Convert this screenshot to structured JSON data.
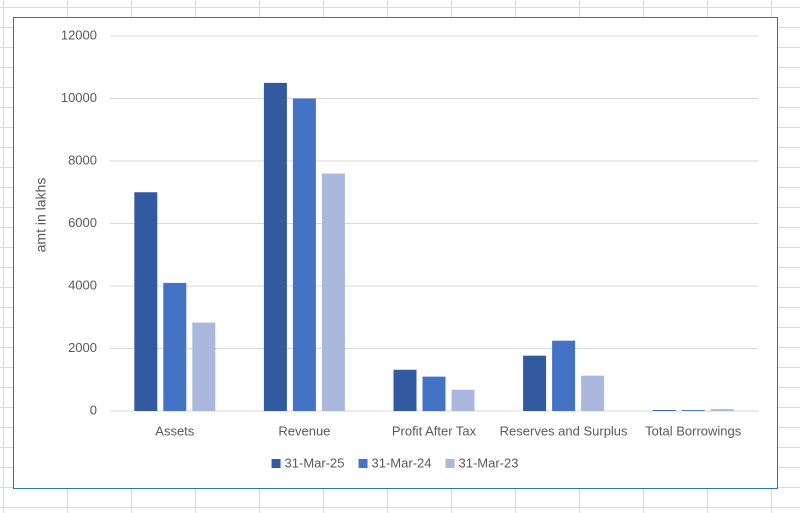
{
  "chart_data": {
    "type": "bar",
    "y_label": "amt in  lakhs",
    "categories": [
      "Assets",
      "Revenue",
      "Profit After Tax",
      "Reserves and Surplus",
      "Total Borrowings"
    ],
    "series": [
      {
        "name": "31-Mar-25",
        "color": "#335aa1",
        "values": [
          7000,
          10500,
          1320,
          1770,
          30
        ]
      },
      {
        "name": "31-Mar-24",
        "color": "#4472c4",
        "values": [
          4100,
          10000,
          1100,
          2250,
          30
        ]
      },
      {
        "name": "31-Mar-23",
        "color": "#a9b8dc",
        "values": [
          2830,
          7600,
          680,
          1130,
          60
        ]
      }
    ],
    "ylim": [
      0,
      12000
    ],
    "yticks": [
      0,
      2000,
      4000,
      6000,
      8000,
      10000,
      12000
    ],
    "grid": true,
    "legend": "bottom"
  }
}
